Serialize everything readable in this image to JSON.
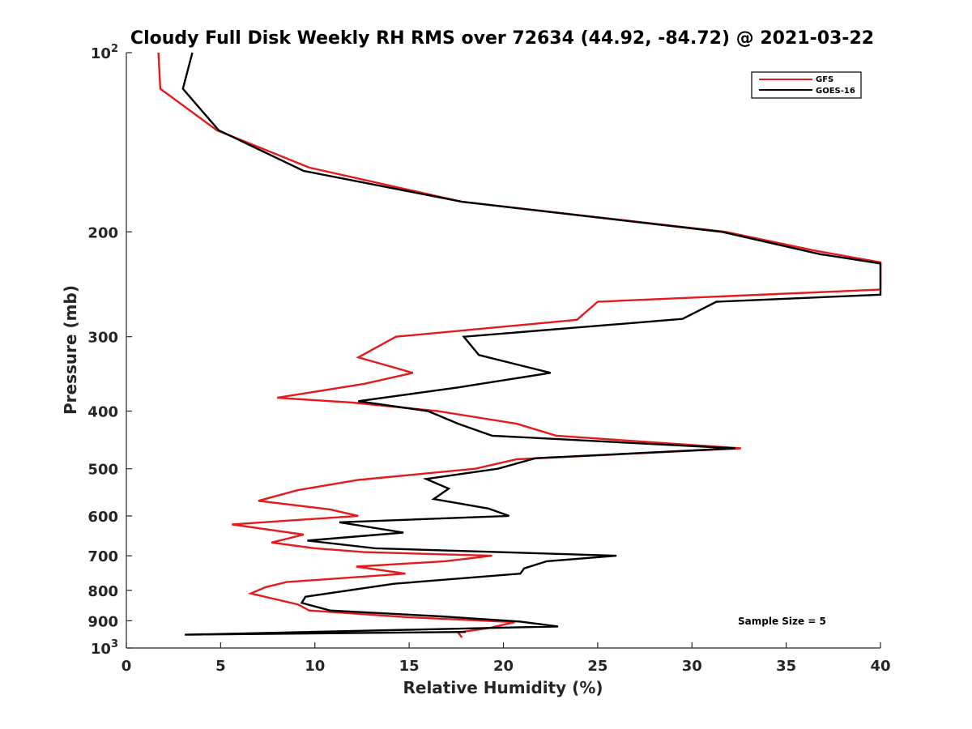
{
  "chart_data": {
    "type": "line",
    "title": "Cloudy Full Disk Weekly RH RMS over 72634 (44.92, -84.72) @ 2021-03-22",
    "xlabel": "Relative Humidity (%)",
    "ylabel": "Pressure (mb)",
    "xlim": [
      0,
      40
    ],
    "ylim": [
      100,
      1000
    ],
    "y_scale": "log",
    "y_reversed": true,
    "x_ticks": [
      0,
      5,
      10,
      15,
      20,
      25,
      30,
      35,
      40
    ],
    "y_ticks": [
      100,
      200,
      300,
      400,
      500,
      600,
      700,
      800,
      900,
      1000
    ],
    "y_tick_labels": [
      "10^2",
      "200",
      "300",
      "400",
      "500",
      "600",
      "700",
      "800",
      "900",
      "10^3"
    ],
    "legend_position": "top-right",
    "annotation": "Sample Size = 5",
    "series": [
      {
        "name": "GFS",
        "color": "#e41a1c",
        "points": [
          [
            1.7,
            100
          ],
          [
            1.8,
            115
          ],
          [
            4.8,
            135
          ],
          [
            9.7,
            156
          ],
          [
            17.8,
            178
          ],
          [
            31.8,
            200
          ],
          [
            36.5,
            215
          ],
          [
            40.0,
            225
          ],
          [
            40.0,
            250
          ],
          [
            25.0,
            262
          ],
          [
            23.9,
            281
          ],
          [
            14.3,
            300
          ],
          [
            12.3,
            325
          ],
          [
            15.2,
            345
          ],
          [
            12.6,
            360
          ],
          [
            8.0,
            380
          ],
          [
            12.0,
            387
          ],
          [
            16.5,
            400
          ],
          [
            20.7,
            420
          ],
          [
            22.8,
            440
          ],
          [
            32.6,
            462
          ],
          [
            20.7,
            482
          ],
          [
            18.5,
            500
          ],
          [
            12.3,
            522
          ],
          [
            9.1,
            543
          ],
          [
            7.0,
            566
          ],
          [
            10.8,
            585
          ],
          [
            12.3,
            600
          ],
          [
            5.6,
            620
          ],
          [
            9.4,
            645
          ],
          [
            7.7,
            665
          ],
          [
            10.0,
            680
          ],
          [
            12.6,
            690
          ],
          [
            19.4,
            700
          ],
          [
            16.9,
            715
          ],
          [
            12.2,
            730
          ],
          [
            14.8,
            750
          ],
          [
            8.5,
            775
          ],
          [
            7.4,
            790
          ],
          [
            6.6,
            810
          ],
          [
            9.1,
            845
          ],
          [
            9.7,
            865
          ],
          [
            15.0,
            888
          ],
          [
            20.6,
            905
          ],
          [
            19.3,
            925
          ],
          [
            17.6,
            942
          ],
          [
            17.8,
            960
          ]
        ]
      },
      {
        "name": "GOES-16",
        "color": "#000000",
        "points": [
          [
            3.5,
            100
          ],
          [
            3.0,
            115
          ],
          [
            4.9,
            135
          ],
          [
            9.4,
            158
          ],
          [
            17.8,
            178
          ],
          [
            31.6,
            200
          ],
          [
            36.8,
            218
          ],
          [
            40.0,
            226
          ],
          [
            40.0,
            255
          ],
          [
            31.3,
            262
          ],
          [
            29.5,
            280
          ],
          [
            17.9,
            300
          ],
          [
            18.7,
            322
          ],
          [
            22.5,
            345
          ],
          [
            17.6,
            365
          ],
          [
            12.3,
            385
          ],
          [
            16.0,
            400
          ],
          [
            17.6,
            420
          ],
          [
            19.4,
            440
          ],
          [
            32.3,
            462
          ],
          [
            21.7,
            480
          ],
          [
            19.7,
            500
          ],
          [
            15.9,
            520
          ],
          [
            17.1,
            540
          ],
          [
            16.3,
            562
          ],
          [
            19.2,
            583
          ],
          [
            20.3,
            600
          ],
          [
            11.3,
            615
          ],
          [
            14.7,
            640
          ],
          [
            9.6,
            660
          ],
          [
            13.2,
            680
          ],
          [
            26.0,
            700
          ],
          [
            22.3,
            715
          ],
          [
            21.1,
            735
          ],
          [
            20.9,
            750
          ],
          [
            14.2,
            780
          ],
          [
            9.5,
            820
          ],
          [
            9.3,
            840
          ],
          [
            10.8,
            865
          ],
          [
            16.7,
            885
          ],
          [
            20.9,
            903
          ],
          [
            22.9,
            920
          ],
          [
            3.1,
            950
          ],
          [
            18.0,
            940
          ]
        ]
      }
    ]
  }
}
